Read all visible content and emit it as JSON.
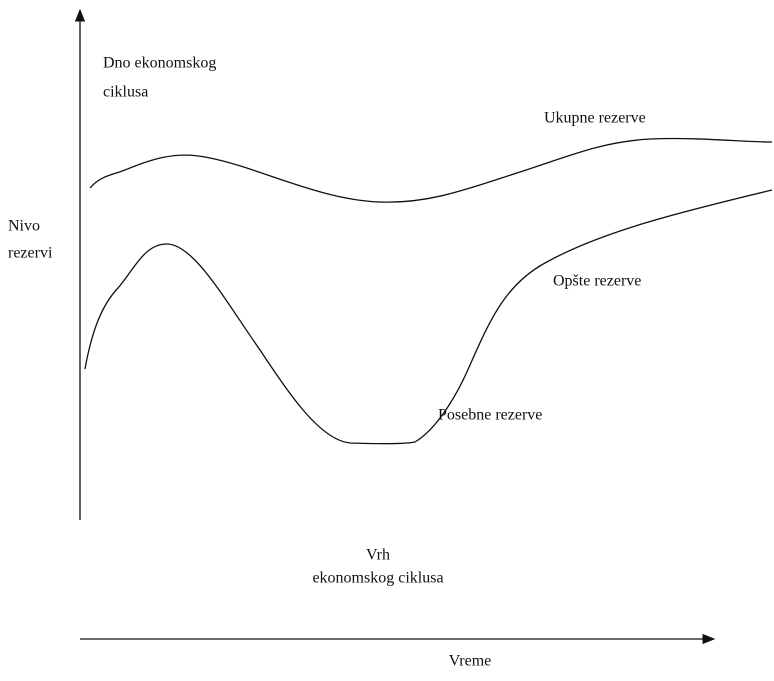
{
  "labels": {
    "bottom": [
      "Dno ekonomskog",
      "ciklusa"
    ],
    "total": "Ukupne rezerve",
    "y_axis": [
      "Nivo",
      "rezervi"
    ],
    "general": "Opšte rezerve",
    "specific": "Posebne rezerve",
    "peak": [
      "Vrh",
      "ekonomskog ciklusa"
    ],
    "x_axis": "Vreme"
  }
}
